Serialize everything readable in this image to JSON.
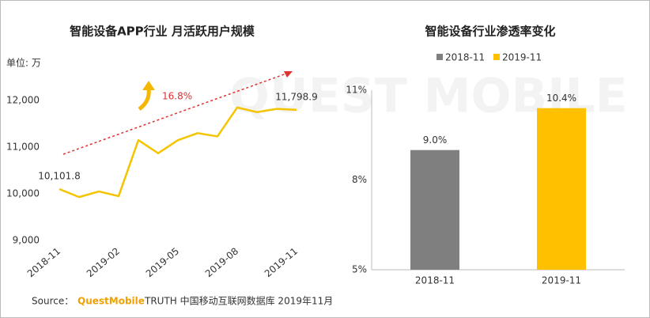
{
  "chart_data": [
    {
      "type": "line",
      "title": "智能设备APP行业 月活跃用户规模",
      "unit_label": "单位: 万",
      "categories": [
        "2018-11",
        null,
        null,
        "2019-02",
        null,
        null,
        "2019-05",
        null,
        null,
        "2019-08",
        null,
        null,
        "2019-11"
      ],
      "values": [
        10101.8,
        9930,
        10050,
        9950,
        11150,
        10870,
        11150,
        11300,
        11230,
        11850,
        11750,
        11820,
        11798.9
      ],
      "value_labels": [
        "10,101.8",
        null,
        null,
        null,
        null,
        null,
        null,
        null,
        null,
        null,
        null,
        null,
        "11,798.9"
      ],
      "color": "#f5c400",
      "annotation": "16.8%",
      "ylim": [
        9000,
        12000
      ],
      "yticks": [
        {
          "value": 9000,
          "label": "9,000"
        },
        {
          "value": 10000,
          "label": "10,000"
        },
        {
          "value": 11000,
          "label": "11,000"
        },
        {
          "value": 12000,
          "label": "12,000"
        }
      ]
    },
    {
      "type": "bar",
      "title": "智能设备行业渗透率变化",
      "categories": [
        "2018-11",
        "2019-11"
      ],
      "values": [
        9.0,
        10.4
      ],
      "value_labels": [
        "9.0%",
        "10.4%"
      ],
      "colors": [
        "#7f7f7f",
        "#ffc000"
      ],
      "legend": true,
      "ylim": [
        5,
        11
      ],
      "yticks": [
        {
          "value": 5,
          "label": "5%"
        },
        {
          "value": 8,
          "label": "8%"
        },
        {
          "value": 11,
          "label": "11%"
        }
      ]
    }
  ],
  "watermark": "QUEST MOBILE",
  "source": {
    "label": "Source：",
    "brand": "QuestMobile",
    "text": "TRUTH 中国移动互联网数据库 2019年11月"
  }
}
